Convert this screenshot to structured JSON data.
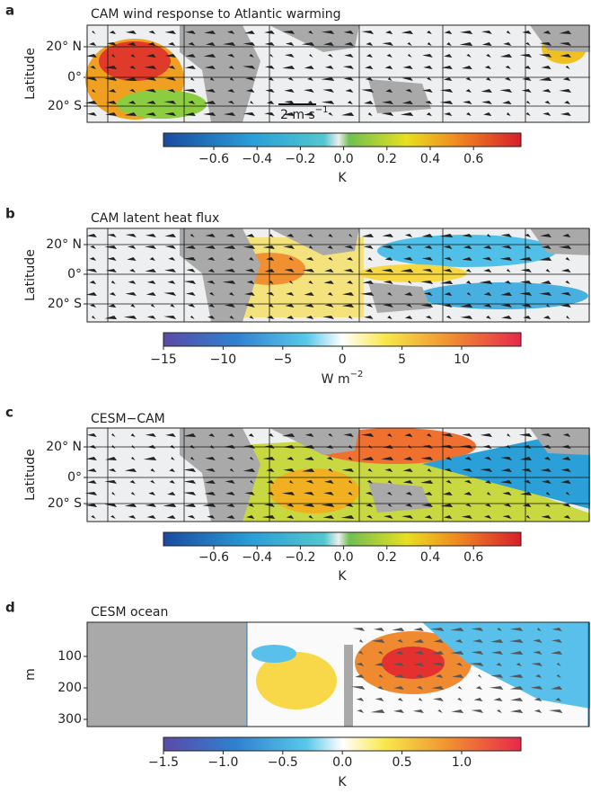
{
  "panels": [
    {
      "letter": "a",
      "title": "CAM wind response to Atlantic warming",
      "ylabel": "Latitude",
      "yticks": [
        "20° N",
        "0°",
        "20° S"
      ],
      "scale_arrow": {
        "text": "2 m s",
        "exponent": "−1"
      },
      "colorbar": {
        "ticks": [
          "−0.6",
          "−0.4",
          "−0.2",
          "0.0",
          "0.2",
          "0.4",
          "0.6"
        ],
        "unit": "K"
      }
    },
    {
      "letter": "b",
      "title": "CAM latent heat flux",
      "ylabel": "Latitude",
      "yticks": [
        "20° N",
        "0°",
        "20° S"
      ],
      "colorbar": {
        "ticks": [
          "−15",
          "−10",
          "−5",
          "0",
          "5",
          "10"
        ],
        "unit": "W m",
        "unit_exponent": "−2"
      }
    },
    {
      "letter": "c",
      "title": "CESM−CAM",
      "ylabel": "Latitude",
      "yticks": [
        "20° N",
        "0°",
        "20° S"
      ],
      "colorbar": {
        "ticks": [
          "−0.6",
          "−0.4",
          "−0.2",
          "0.0",
          "0.2",
          "0.4",
          "0.6"
        ],
        "unit": "K"
      }
    },
    {
      "letter": "d",
      "title": "CESM ocean",
      "ylabel": "m",
      "yticks": [
        "100",
        "200",
        "300"
      ],
      "colorbar": {
        "ticks": [
          "−1.5",
          "−1.0",
          "−0.5",
          "0.0",
          "0.5",
          "1.0"
        ],
        "unit": "K"
      }
    }
  ]
}
